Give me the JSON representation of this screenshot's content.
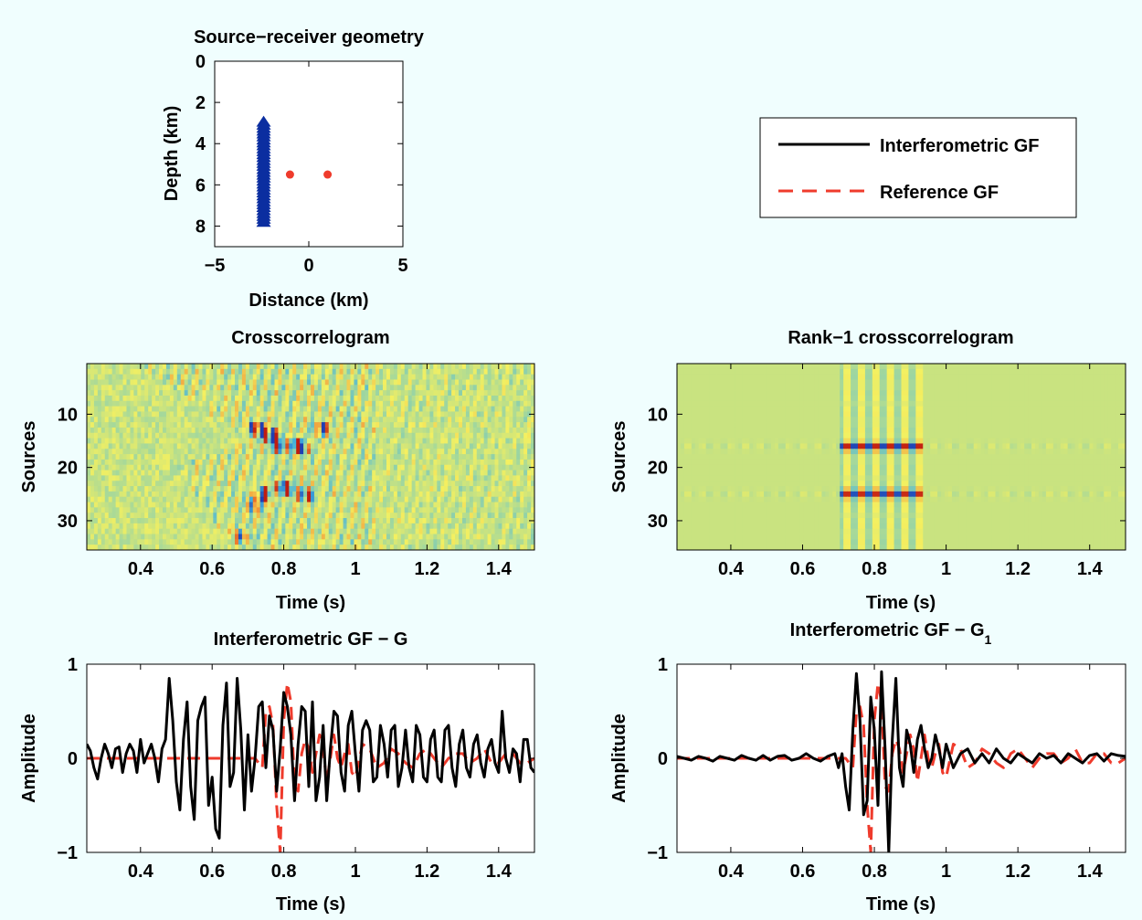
{
  "background": "#f0fefe",
  "chart_data": [
    {
      "type": "scatter",
      "title": "Source−receiver geometry",
      "xlabel": "Distance (km)",
      "ylabel": "Depth (km)",
      "xlim": [
        -5,
        5
      ],
      "ylim": [
        0,
        9
      ],
      "y_reversed": true,
      "xticks": [
        "−5",
        "0",
        "5"
      ],
      "yticks": [
        "0",
        "2",
        "4",
        "6",
        "8"
      ],
      "series": [
        {
          "role": "sources",
          "marker": "triangle",
          "color": "#0b2ea0",
          "x": -2.4,
          "depths": [
            3.0,
            3.14,
            3.29,
            3.43,
            3.57,
            3.71,
            3.86,
            4.0,
            4.14,
            4.29,
            4.43,
            4.57,
            4.71,
            4.86,
            5.0,
            5.14,
            5.29,
            5.43,
            5.57,
            5.71,
            5.86,
            6.0,
            6.14,
            6.29,
            6.43,
            6.57,
            6.71,
            6.86,
            7.0,
            7.14,
            7.29,
            7.43,
            7.57,
            7.71,
            7.86
          ]
        },
        {
          "role": "receivers",
          "marker": "dot",
          "color": "#ef3b2c",
          "points": [
            [
              -1.0,
              5.5
            ],
            [
              1.0,
              5.5
            ]
          ]
        }
      ]
    },
    {
      "type": "heatmap",
      "title": "Crosscorrelogram",
      "xlabel": "Time (s)",
      "ylabel": "Sources",
      "xlim": [
        0.25,
        1.5
      ],
      "ylim": [
        0.5,
        35.5
      ],
      "xticks": [
        "0.4",
        "0.6",
        "0.8",
        "1",
        "1.2",
        "1.4"
      ],
      "yticks": [
        "10",
        "20",
        "30"
      ],
      "colormap": [
        "#1e3fb4",
        "#3fb0e0",
        "#9ed6a0",
        "#f4f060",
        "#f08030",
        "#c01c10"
      ],
      "features": {
        "diagonal_band": [
          [
            0.45,
            1
          ],
          [
            0.75,
            15
          ],
          [
            0.55,
            20
          ],
          [
            0.7,
            35
          ]
        ],
        "strong_events": [
          [
            0.72,
            13
          ],
          [
            0.76,
            14
          ],
          [
            0.84,
            16
          ],
          [
            0.78,
            16
          ],
          [
            0.9,
            13
          ],
          [
            0.74,
            25
          ],
          [
            0.8,
            24
          ],
          [
            0.86,
            25
          ],
          [
            0.72,
            27
          ],
          [
            0.68,
            33
          ]
        ]
      }
    },
    {
      "type": "heatmap",
      "title": "Rank−1 crosscorrelogram",
      "xlabel": "Time (s)",
      "ylabel": "Sources",
      "xlim": [
        0.25,
        1.5
      ],
      "ylim": [
        0.5,
        35.5
      ],
      "xticks": [
        "0.4",
        "0.6",
        "0.8",
        "1",
        "1.2",
        "1.4"
      ],
      "yticks": [
        "10",
        "20",
        "30"
      ],
      "colormap": [
        "#1e3fb4",
        "#3fb0e0",
        "#9ed6a0",
        "#f4f060",
        "#f08030",
        "#c01c10"
      ],
      "features": {
        "source_rows": [
          16,
          25
        ],
        "time_window": [
          0.7,
          0.93
        ],
        "oscillation_period": 0.04
      }
    },
    {
      "type": "line",
      "title": "Interferometric GF − G",
      "xlabel": "Time (s)",
      "ylabel": "Amplitude",
      "xlim": [
        0.25,
        1.5
      ],
      "ylim": [
        -1,
        1
      ],
      "xticks": [
        "0.4",
        "0.6",
        "0.8",
        "1",
        "1.2",
        "1.4"
      ],
      "yticks": [
        "−1",
        "0",
        "1"
      ],
      "series": [
        {
          "name": "Interferometric GF",
          "color": "#000000",
          "dash": "solid",
          "x": [
            0.25,
            0.26,
            0.27,
            0.28,
            0.29,
            0.3,
            0.31,
            0.32,
            0.33,
            0.34,
            0.35,
            0.36,
            0.37,
            0.38,
            0.39,
            0.4,
            0.41,
            0.42,
            0.43,
            0.44,
            0.45,
            0.46,
            0.47,
            0.48,
            0.49,
            0.5,
            0.51,
            0.52,
            0.53,
            0.54,
            0.55,
            0.56,
            0.57,
            0.58,
            0.59,
            0.6,
            0.61,
            0.62,
            0.63,
            0.64,
            0.65,
            0.66,
            0.67,
            0.68,
            0.69,
            0.7,
            0.71,
            0.72,
            0.73,
            0.74,
            0.75,
            0.76,
            0.77,
            0.78,
            0.79,
            0.8,
            0.81,
            0.82,
            0.83,
            0.84,
            0.85,
            0.86,
            0.87,
            0.88,
            0.89,
            0.9,
            0.91,
            0.92,
            0.93,
            0.94,
            0.95,
            0.96,
            0.97,
            0.98,
            0.99,
            1.0,
            1.01,
            1.02,
            1.03,
            1.04,
            1.05,
            1.06,
            1.07,
            1.08,
            1.09,
            1.1,
            1.11,
            1.12,
            1.13,
            1.14,
            1.15,
            1.16,
            1.17,
            1.18,
            1.19,
            1.2,
            1.21,
            1.22,
            1.23,
            1.24,
            1.25,
            1.26,
            1.27,
            1.28,
            1.29,
            1.3,
            1.31,
            1.32,
            1.33,
            1.34,
            1.35,
            1.36,
            1.37,
            1.38,
            1.39,
            1.4,
            1.41,
            1.42,
            1.43,
            1.44,
            1.45,
            1.46,
            1.47,
            1.48,
            1.49,
            1.5
          ],
          "y": [
            0.15,
            0.08,
            -0.1,
            -0.22,
            0.0,
            0.15,
            0.05,
            -0.1,
            0.1,
            0.12,
            -0.15,
            0.05,
            0.15,
            0.08,
            -0.15,
            0.2,
            -0.05,
            0.05,
            0.15,
            0.0,
            -0.25,
            0.1,
            0.2,
            0.85,
            0.4,
            -0.25,
            -0.55,
            0.2,
            0.6,
            -0.3,
            -0.65,
            0.4,
            0.55,
            0.65,
            -0.5,
            -0.2,
            -0.75,
            -0.85,
            0.35,
            0.8,
            -0.3,
            -0.15,
            0.85,
            0.3,
            -0.55,
            0.25,
            -0.35,
            0.0,
            0.55,
            0.6,
            -0.1,
            0.45,
            0.3,
            -0.35,
            0.1,
            0.7,
            0.55,
            0.25,
            -0.45,
            0.15,
            0.55,
            0.5,
            -0.3,
            0.6,
            -0.45,
            -0.2,
            0.35,
            -0.45,
            0.1,
            0.5,
            0.45,
            -0.15,
            -0.35,
            0.35,
            0.5,
            0.05,
            -0.35,
            0.3,
            0.4,
            0.3,
            -0.25,
            -0.2,
            0.35,
            0.15,
            -0.2,
            0.3,
            0.35,
            -0.3,
            -0.1,
            0.3,
            -0.1,
            -0.25,
            0.35,
            0.25,
            -0.2,
            -0.25,
            0.2,
            0.3,
            -0.2,
            -0.25,
            0.3,
            0.35,
            -0.1,
            -0.3,
            0.15,
            0.3,
            -0.1,
            -0.2,
            0.15,
            0.25,
            -0.05,
            -0.2,
            0.1,
            0.2,
            -0.05,
            -0.15,
            0.5,
            0.0,
            -0.15,
            0.1,
            0.05,
            -0.25,
            0.2,
            0.2,
            -0.1,
            -0.15
          ]
        },
        {
          "name": "Reference GF",
          "color": "#ef3b2c",
          "dash": "dashed",
          "x": [
            0.25,
            0.3,
            0.4,
            0.5,
            0.6,
            0.7,
            0.72,
            0.74,
            0.75,
            0.76,
            0.77,
            0.78,
            0.79,
            0.8,
            0.81,
            0.82,
            0.83,
            0.84,
            0.85,
            0.86,
            0.87,
            0.88,
            0.89,
            0.9,
            0.91,
            0.92,
            0.93,
            0.94,
            0.95,
            0.96,
            0.97,
            0.98,
            0.99,
            1.0,
            1.02,
            1.04,
            1.06,
            1.08,
            1.1,
            1.12,
            1.14,
            1.16,
            1.18,
            1.2,
            1.22,
            1.24,
            1.26,
            1.28,
            1.3,
            1.32,
            1.34,
            1.36,
            1.38,
            1.4,
            1.42,
            1.44,
            1.46,
            1.48,
            1.5
          ],
          "y": [
            0.0,
            0.0,
            0.0,
            0.0,
            0.0,
            0.0,
            0.0,
            -0.1,
            0.5,
            0.55,
            0.35,
            -0.5,
            -1.0,
            0.4,
            0.8,
            0.6,
            -0.3,
            -0.35,
            0.05,
            0.2,
            0.1,
            -0.15,
            0.05,
            0.25,
            0.1,
            -0.25,
            0.0,
            0.25,
            0.0,
            -0.1,
            0.05,
            0.15,
            -0.15,
            -0.2,
            0.15,
            0.1,
            -0.1,
            -0.05,
            0.1,
            0.05,
            -0.05,
            -0.1,
            0.05,
            0.1,
            0.0,
            -0.1,
            0.0,
            0.05,
            0.05,
            -0.05,
            0.0,
            0.1,
            -0.05,
            -0.05,
            0.05,
            0.05,
            -0.05,
            -0.05,
            0.0
          ]
        }
      ]
    },
    {
      "type": "line",
      "title": "Interferometric GF − G",
      "title_subscript": "1",
      "xlabel": "Time (s)",
      "ylabel": "Amplitude",
      "xlim": [
        0.25,
        1.5
      ],
      "ylim": [
        -1,
        1
      ],
      "xticks": [
        "0.4",
        "0.6",
        "0.8",
        "1",
        "1.2",
        "1.4"
      ],
      "yticks": [
        "−1",
        "0",
        "1"
      ],
      "series": [
        {
          "name": "Interferometric GF",
          "color": "#000000",
          "dash": "solid",
          "x": [
            0.25,
            0.27,
            0.29,
            0.31,
            0.33,
            0.35,
            0.37,
            0.39,
            0.41,
            0.43,
            0.45,
            0.47,
            0.49,
            0.51,
            0.53,
            0.55,
            0.57,
            0.59,
            0.61,
            0.63,
            0.65,
            0.67,
            0.69,
            0.7,
            0.71,
            0.72,
            0.73,
            0.74,
            0.75,
            0.76,
            0.77,
            0.78,
            0.79,
            0.8,
            0.81,
            0.82,
            0.83,
            0.84,
            0.85,
            0.86,
            0.87,
            0.88,
            0.89,
            0.9,
            0.91,
            0.92,
            0.93,
            0.94,
            0.95,
            0.96,
            0.97,
            0.98,
            0.99,
            1.0,
            1.02,
            1.04,
            1.06,
            1.08,
            1.1,
            1.12,
            1.14,
            1.16,
            1.18,
            1.2,
            1.22,
            1.24,
            1.26,
            1.28,
            1.3,
            1.32,
            1.34,
            1.36,
            1.38,
            1.4,
            1.42,
            1.44,
            1.46,
            1.48,
            1.5
          ],
          "y": [
            0.02,
            0.0,
            -0.02,
            0.02,
            0.0,
            -0.03,
            0.02,
            0.0,
            -0.02,
            0.03,
            0.0,
            -0.02,
            0.03,
            -0.02,
            0.02,
            0.03,
            -0.02,
            0.0,
            0.05,
            0.0,
            -0.03,
            0.02,
            0.05,
            -0.1,
            0.05,
            -0.3,
            -0.55,
            0.3,
            0.9,
            0.4,
            -0.6,
            -0.45,
            0.65,
            0.3,
            -0.5,
            0.92,
            0.1,
            -1.0,
            0.2,
            0.85,
            -0.1,
            -0.3,
            0.3,
            0.15,
            -0.15,
            0.2,
            0.35,
            0.1,
            -0.1,
            0.0,
            0.25,
            0.1,
            -0.1,
            0.15,
            -0.1,
            0.05,
            0.1,
            -0.05,
            0.05,
            -0.05,
            0.1,
            0.0,
            -0.05,
            0.05,
            0.0,
            -0.05,
            0.05,
            0.0,
            0.03,
            -0.05,
            0.05,
            0.0,
            -0.05,
            0.03,
            0.05,
            -0.03,
            0.05,
            0.03,
            0.02
          ]
        },
        {
          "name": "Reference GF",
          "color": "#ef3b2c",
          "dash": "dashed",
          "x": [
            0.25,
            0.3,
            0.4,
            0.5,
            0.6,
            0.7,
            0.72,
            0.74,
            0.75,
            0.76,
            0.77,
            0.78,
            0.79,
            0.8,
            0.81,
            0.82,
            0.83,
            0.84,
            0.85,
            0.86,
            0.87,
            0.88,
            0.89,
            0.9,
            0.91,
            0.92,
            0.93,
            0.94,
            0.95,
            0.96,
            0.97,
            0.98,
            0.99,
            1.0,
            1.02,
            1.04,
            1.06,
            1.08,
            1.1,
            1.12,
            1.14,
            1.16,
            1.18,
            1.2,
            1.22,
            1.24,
            1.26,
            1.28,
            1.3,
            1.32,
            1.34,
            1.36,
            1.38,
            1.4,
            1.42,
            1.44,
            1.46,
            1.48,
            1.5
          ],
          "y": [
            0.0,
            0.0,
            0.0,
            0.0,
            0.0,
            0.0,
            0.0,
            -0.1,
            0.5,
            0.55,
            0.35,
            -0.5,
            -1.0,
            0.4,
            0.8,
            0.6,
            -0.3,
            -0.35,
            0.05,
            0.2,
            0.1,
            -0.15,
            0.05,
            0.25,
            0.1,
            -0.25,
            0.0,
            0.25,
            0.0,
            -0.1,
            0.05,
            0.15,
            -0.15,
            -0.2,
            0.15,
            0.1,
            -0.1,
            -0.05,
            0.1,
            0.05,
            -0.05,
            -0.1,
            0.05,
            0.1,
            0.0,
            -0.1,
            0.0,
            0.05,
            0.05,
            -0.05,
            0.0,
            0.1,
            -0.05,
            -0.05,
            0.05,
            0.05,
            -0.05,
            -0.05,
            0.0
          ]
        }
      ]
    }
  ],
  "legend": {
    "entries": [
      {
        "label": "Interferometric GF",
        "color": "#000000",
        "dash": "solid"
      },
      {
        "label": "Reference GF",
        "color": "#ef3b2c",
        "dash": "dashed"
      }
    ]
  }
}
